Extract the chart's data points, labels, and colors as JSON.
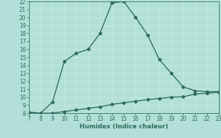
{
  "x_upper": [
    7,
    8,
    9,
    10,
    11,
    12,
    13,
    14,
    15,
    16,
    17,
    18,
    19,
    20,
    21,
    22,
    23
  ],
  "y_upper": [
    8.1,
    8.0,
    9.4,
    14.5,
    15.5,
    16.0,
    18.0,
    21.8,
    22.0,
    20.0,
    17.8,
    14.7,
    13.0,
    11.3,
    10.8,
    10.7,
    10.7
  ],
  "x_lower": [
    7,
    8,
    9,
    10,
    11,
    12,
    13,
    14,
    15,
    16,
    17,
    18,
    19,
    20,
    21,
    22,
    23
  ],
  "y_lower": [
    8.1,
    8.0,
    8.0,
    8.2,
    8.4,
    8.6,
    8.8,
    9.1,
    9.3,
    9.5,
    9.7,
    9.85,
    10.0,
    10.05,
    10.4,
    10.5,
    10.6
  ],
  "line_color": "#2e6b5e",
  "bg_color": "#b2e0d8",
  "grid_color": "#c8e8e0",
  "xlabel": "Humidex (Indice chaleur)",
  "xlim": [
    7,
    23
  ],
  "ylim": [
    8,
    22
  ],
  "xticks": [
    7,
    8,
    9,
    10,
    11,
    12,
    13,
    14,
    15,
    16,
    17,
    18,
    19,
    20,
    21,
    22,
    23
  ],
  "yticks": [
    8,
    9,
    10,
    11,
    12,
    13,
    14,
    15,
    16,
    17,
    18,
    19,
    20,
    21,
    22
  ],
  "marker": "D",
  "markersize": 2.2,
  "linewidth": 1.0,
  "tick_fontsize": 5.5,
  "label_fontsize": 6.5
}
